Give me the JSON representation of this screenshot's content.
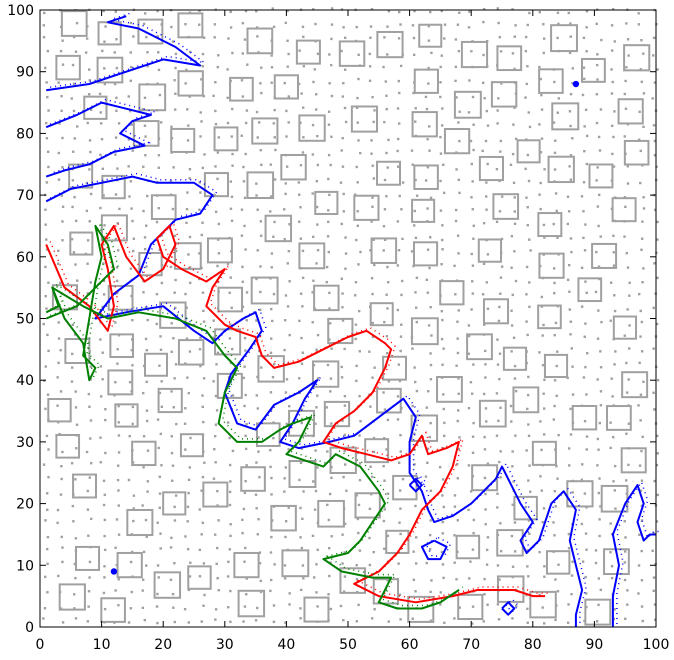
{
  "chart_data": {
    "type": "line",
    "title": "",
    "xlabel": "",
    "ylabel": "",
    "xlim": [
      0,
      100
    ],
    "ylim": [
      0,
      100
    ],
    "grid": false,
    "legend": "none",
    "x_ticks": [
      "0",
      "10",
      "20",
      "30",
      "40",
      "50",
      "60",
      "70",
      "80",
      "90",
      "100"
    ],
    "y_ticks": [
      "0",
      "10",
      "20",
      "30",
      "40",
      "50",
      "60",
      "70",
      "80",
      "90",
      "100"
    ],
    "colors": {
      "blue": "#0000ff",
      "red": "#ff0000",
      "green": "#008000",
      "obstacle": "#a0a0a0",
      "dots": "#a0a0a0"
    },
    "series": [
      {
        "color": "blue",
        "style": "solid",
        "points": [
          [
            1,
            87
          ],
          [
            8,
            88
          ],
          [
            14,
            90
          ],
          [
            20,
            92
          ],
          [
            26,
            91
          ],
          [
            22,
            94
          ],
          [
            16,
            97
          ],
          [
            11,
            98
          ],
          [
            14,
            99
          ]
        ]
      },
      {
        "color": "blue",
        "style": "solid",
        "points": [
          [
            1,
            81
          ],
          [
            6,
            83
          ],
          [
            10,
            85
          ],
          [
            14,
            84
          ],
          [
            18,
            83
          ],
          [
            15,
            82
          ],
          [
            13,
            80
          ],
          [
            17,
            78
          ],
          [
            12,
            77
          ],
          [
            8,
            75
          ],
          [
            4,
            74
          ],
          [
            1,
            73
          ]
        ]
      },
      {
        "color": "blue",
        "style": "solid",
        "points": [
          [
            1,
            69
          ],
          [
            5,
            71
          ],
          [
            10,
            72
          ],
          [
            15,
            73
          ],
          [
            19,
            72
          ],
          [
            25,
            72
          ],
          [
            28,
            70
          ],
          [
            26,
            67
          ],
          [
            22,
            66
          ],
          [
            18,
            62
          ],
          [
            16,
            57
          ],
          [
            12,
            54
          ],
          [
            9,
            50
          ],
          [
            14,
            51
          ],
          [
            20,
            52
          ],
          [
            25,
            48
          ],
          [
            28,
            46
          ],
          [
            30,
            48
          ],
          [
            33,
            50
          ],
          [
            35,
            51
          ],
          [
            36,
            48
          ],
          [
            34,
            45
          ],
          [
            31,
            41
          ],
          [
            30,
            38
          ],
          [
            32,
            33
          ],
          [
            35,
            32
          ],
          [
            38,
            36
          ],
          [
            42,
            38
          ],
          [
            45,
            40
          ],
          [
            43,
            37
          ],
          [
            41,
            33
          ],
          [
            39,
            30
          ],
          [
            42,
            29
          ],
          [
            47,
            30
          ],
          [
            51,
            31
          ],
          [
            55,
            34
          ],
          [
            59,
            37
          ],
          [
            61,
            34
          ],
          [
            60,
            30
          ],
          [
            60,
            25
          ],
          [
            62,
            22
          ],
          [
            63,
            19
          ],
          [
            64,
            17
          ],
          [
            67,
            18
          ],
          [
            70,
            20
          ],
          [
            72,
            22
          ],
          [
            74,
            24
          ],
          [
            75,
            26
          ],
          [
            76,
            24
          ],
          [
            78,
            20
          ],
          [
            80,
            17
          ],
          [
            78,
            14
          ],
          [
            79,
            12
          ],
          [
            81,
            14
          ],
          [
            82,
            17
          ],
          [
            83,
            20
          ],
          [
            85,
            22
          ],
          [
            87,
            19
          ],
          [
            86,
            14
          ],
          [
            87,
            10
          ],
          [
            88,
            6
          ],
          [
            87,
            2
          ],
          [
            87,
            0
          ]
        ]
      },
      {
        "color": "blue",
        "style": "solid",
        "points": [
          [
            93,
            0
          ],
          [
            93,
            5
          ],
          [
            94,
            10
          ],
          [
            93,
            15
          ],
          [
            95,
            20
          ],
          [
            97,
            23
          ],
          [
            98,
            20
          ],
          [
            97,
            17
          ],
          [
            98,
            14
          ],
          [
            99,
            15
          ],
          [
            100,
            15
          ]
        ]
      },
      {
        "color": "blue",
        "style": "solid",
        "points": [
          [
            64,
            14
          ],
          [
            66,
            13
          ],
          [
            65,
            11
          ],
          [
            63,
            11
          ],
          [
            62,
            13
          ],
          [
            64,
            14
          ]
        ]
      },
      {
        "color": "blue",
        "style": "solid",
        "points": [
          [
            60,
            23
          ],
          [
            61,
            24
          ],
          [
            62,
            23
          ],
          [
            61,
            22
          ],
          [
            60,
            23
          ]
        ]
      },
      {
        "color": "blue",
        "style": "solid",
        "points": [
          [
            75,
            3
          ],
          [
            76,
            4
          ],
          [
            77,
            3
          ],
          [
            76,
            2
          ],
          [
            75,
            3
          ]
        ]
      },
      {
        "color": "red",
        "style": "solid",
        "points": [
          [
            1,
            62
          ],
          [
            4,
            55
          ],
          [
            8,
            52
          ],
          [
            11,
            48
          ],
          [
            12,
            52
          ],
          [
            11,
            58
          ],
          [
            10,
            62
          ],
          [
            12,
            65
          ],
          [
            14,
            60
          ],
          [
            17,
            56
          ],
          [
            20,
            58
          ],
          [
            22,
            62
          ],
          [
            21,
            65
          ],
          [
            19,
            63
          ],
          [
            20,
            60
          ],
          [
            23,
            58
          ],
          [
            27,
            56
          ],
          [
            30,
            58
          ],
          [
            28,
            55
          ],
          [
            27,
            52
          ],
          [
            30,
            49
          ],
          [
            32,
            48
          ],
          [
            35,
            47
          ],
          [
            36,
            44
          ],
          [
            38,
            42
          ],
          [
            42,
            43
          ],
          [
            46,
            45
          ],
          [
            50,
            47
          ],
          [
            53,
            48
          ],
          [
            56,
            46
          ],
          [
            57,
            45
          ],
          [
            56,
            42
          ],
          [
            54,
            38
          ],
          [
            51,
            35
          ],
          [
            48,
            33
          ],
          [
            46,
            30
          ],
          [
            49,
            29
          ],
          [
            53,
            28
          ],
          [
            57,
            27
          ],
          [
            60,
            28
          ],
          [
            62,
            31
          ],
          [
            63,
            28
          ],
          [
            66,
            29
          ],
          [
            68,
            30
          ],
          [
            67,
            26
          ],
          [
            65,
            22
          ],
          [
            62,
            19
          ],
          [
            60,
            15
          ],
          [
            58,
            12
          ],
          [
            55,
            9
          ],
          [
            51,
            7
          ],
          [
            55,
            5
          ],
          [
            61,
            4
          ],
          [
            67,
            5
          ],
          [
            71,
            6
          ],
          [
            74,
            6
          ],
          [
            77,
            6
          ],
          [
            80,
            5
          ],
          [
            82,
            5
          ]
        ]
      },
      {
        "color": "green",
        "style": "solid",
        "points": [
          [
            2,
            55
          ],
          [
            7,
            52
          ],
          [
            11,
            50
          ],
          [
            16,
            51
          ],
          [
            22,
            50
          ],
          [
            27,
            48
          ],
          [
            30,
            44
          ],
          [
            32,
            42
          ],
          [
            30,
            38
          ],
          [
            29,
            33
          ],
          [
            32,
            30
          ],
          [
            36,
            30
          ],
          [
            39,
            32
          ],
          [
            41,
            33
          ],
          [
            44,
            34
          ],
          [
            42,
            30
          ],
          [
            40,
            28
          ],
          [
            43,
            27
          ],
          [
            46,
            26
          ],
          [
            48,
            28
          ],
          [
            50,
            27
          ],
          [
            52,
            26
          ],
          [
            55,
            22
          ],
          [
            56,
            20
          ],
          [
            54,
            17
          ],
          [
            52,
            14
          ],
          [
            50,
            12
          ],
          [
            46,
            11
          ],
          [
            49,
            9
          ],
          [
            54,
            8
          ],
          [
            57,
            8
          ],
          [
            56,
            6
          ],
          [
            55,
            4
          ],
          [
            58,
            3
          ],
          [
            62,
            3
          ],
          [
            65,
            4
          ],
          [
            68,
            6
          ]
        ]
      },
      {
        "color": "green",
        "style": "solid",
        "points": [
          [
            1,
            50
          ],
          [
            6,
            52
          ],
          [
            9,
            55
          ],
          [
            12,
            58
          ],
          [
            11,
            62
          ],
          [
            9,
            65
          ],
          [
            10,
            60
          ],
          [
            9,
            56
          ],
          [
            8,
            50
          ],
          [
            7,
            44
          ],
          [
            9,
            42
          ],
          [
            8,
            40
          ],
          [
            7,
            46
          ],
          [
            4,
            50
          ],
          [
            2,
            55
          ],
          [
            3,
            52
          ],
          [
            1,
            51
          ]
        ]
      }
    ],
    "scattered_points": [
      {
        "color": "blue",
        "x": 87,
        "y": 88
      },
      {
        "color": "blue",
        "x": 12,
        "y": 9
      }
    ]
  }
}
